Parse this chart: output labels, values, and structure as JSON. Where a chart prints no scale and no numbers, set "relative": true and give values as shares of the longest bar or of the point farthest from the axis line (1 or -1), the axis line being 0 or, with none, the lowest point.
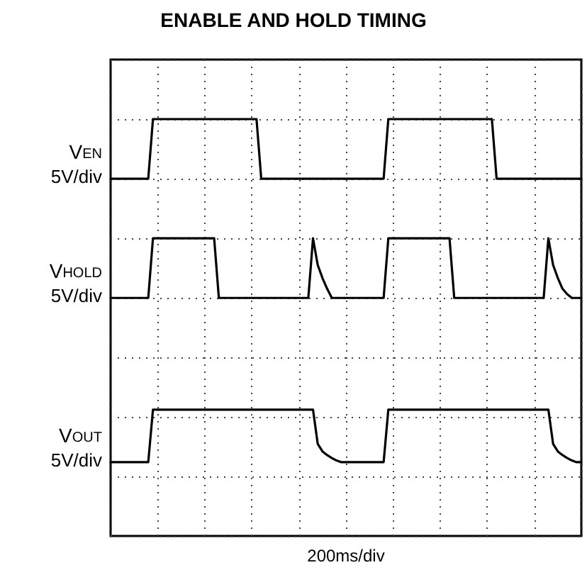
{
  "chart_data": {
    "type": "line",
    "title": "ENABLE AND HOLD TIMING",
    "xlabel": "200ms/div",
    "relative": true,
    "grid": true,
    "legend": false,
    "marker": "none",
    "line_style": "solid",
    "annotations": [
      "5V/div",
      "5V/div",
      "5V/div"
    ],
    "categories": [
      null,
      null,
      null,
      null,
      null,
      null,
      null,
      null,
      null,
      null,
      null,
      null,
      null,
      null,
      null,
      null,
      null,
      null,
      null,
      null,
      null,
      null,
      null,
      null,
      null,
      null,
      null,
      null,
      null,
      null,
      null,
      null,
      null,
      null,
      null,
      null,
      null,
      null,
      null,
      null,
      null,
      null,
      null,
      null,
      null,
      null,
      null,
      null,
      null,
      null,
      null,
      null,
      null,
      null,
      null,
      null,
      null,
      null,
      null,
      null,
      null,
      null,
      null,
      null,
      null,
      null,
      null,
      null,
      null,
      null,
      null,
      null,
      null,
      null,
      null,
      null,
      null,
      null,
      null,
      null,
      null,
      null,
      null,
      null,
      null,
      null,
      null,
      null,
      null,
      null,
      null,
      null,
      null,
      null,
      null,
      null,
      null,
      null,
      null,
      null,
      null
    ],
    "series": [
      {
        "name": "V$_{EN}$",
        "color": "#000000",
        "values": [
          0.857,
          0.857,
          0.857,
          0.857,
          0.857,
          0.857,
          0.857,
          0.857,
          0.857,
          1,
          1,
          1,
          1,
          1,
          1,
          1,
          1,
          1,
          1,
          1,
          1,
          1,
          1,
          1,
          1,
          1,
          1,
          1,
          1,
          1,
          1,
          1,
          0.857,
          0.857,
          0.857,
          0.857,
          0.857,
          0.857,
          0.857,
          0.857,
          0.857,
          0.857,
          0.857,
          0.857,
          0.857,
          0.857,
          0.857,
          0.857,
          0.857,
          0.857,
          0.857,
          0.857,
          0.857,
          0.857,
          0.857,
          0.857,
          0.857,
          0.857,
          0.857,
          1,
          1,
          1,
          1,
          1,
          1,
          1,
          1,
          1,
          1,
          1,
          1,
          1,
          1,
          1,
          1,
          1,
          1,
          1,
          1,
          1,
          1,
          1,
          0.857,
          0.857,
          0.857,
          0.857,
          0.857,
          0.857,
          0.857,
          0.857,
          0.857,
          0.857,
          0.857,
          0.857,
          0.857,
          0.857,
          0.857,
          0.857,
          0.857,
          0.857,
          0.857
        ]
      },
      {
        "name": "V$_{HOLD}$",
        "color": "#000000",
        "values": [
          0.571,
          0.571,
          0.571,
          0.571,
          0.571,
          0.571,
          0.571,
          0.571,
          0.571,
          0.714,
          0.714,
          0.714,
          0.714,
          0.714,
          0.714,
          0.714,
          0.714,
          0.714,
          0.714,
          0.714,
          0.714,
          0.714,
          0.714,
          0.571,
          0.571,
          0.571,
          0.571,
          0.571,
          0.571,
          0.571,
          0.571,
          0.571,
          0.571,
          0.571,
          0.571,
          0.571,
          0.571,
          0.571,
          0.571,
          0.571,
          0.571,
          0.571,
          0.571,
          0.714,
          0.65,
          0.619,
          0.593,
          0.571,
          0.571,
          0.571,
          0.571,
          0.571,
          0.571,
          0.571,
          0.571,
          0.571,
          0.571,
          0.571,
          0.571,
          0.714,
          0.714,
          0.714,
          0.714,
          0.714,
          0.714,
          0.714,
          0.714,
          0.714,
          0.714,
          0.714,
          0.714,
          0.714,
          0.714,
          0.571,
          0.571,
          0.571,
          0.571,
          0.571,
          0.571,
          0.571,
          0.571,
          0.571,
          0.571,
          0.571,
          0.571,
          0.571,
          0.571,
          0.571,
          0.571,
          0.571,
          0.571,
          0.571,
          0.571,
          0.714,
          0.65,
          0.619,
          0.593,
          0.58,
          0.571,
          0.571,
          0.571
        ]
      },
      {
        "name": "V$_{OUT}$",
        "color": "#000000",
        "values": [
          0.177,
          0.177,
          0.177,
          0.177,
          0.177,
          0.177,
          0.177,
          0.177,
          0.177,
          0.303,
          0.303,
          0.303,
          0.303,
          0.303,
          0.303,
          0.303,
          0.303,
          0.303,
          0.303,
          0.303,
          0.303,
          0.303,
          0.303,
          0.303,
          0.303,
          0.303,
          0.303,
          0.303,
          0.303,
          0.303,
          0.303,
          0.303,
          0.303,
          0.303,
          0.303,
          0.303,
          0.303,
          0.303,
          0.303,
          0.303,
          0.303,
          0.303,
          0.303,
          0.303,
          0.221,
          0.203,
          0.194,
          0.187,
          0.181,
          0.177,
          0.177,
          0.177,
          0.177,
          0.177,
          0.177,
          0.177,
          0.177,
          0.177,
          0.177,
          0.303,
          0.303,
          0.303,
          0.303,
          0.303,
          0.303,
          0.303,
          0.303,
          0.303,
          0.303,
          0.303,
          0.303,
          0.303,
          0.303,
          0.303,
          0.303,
          0.303,
          0.303,
          0.303,
          0.303,
          0.303,
          0.303,
          0.303,
          0.303,
          0.303,
          0.303,
          0.303,
          0.303,
          0.303,
          0.303,
          0.303,
          0.303,
          0.303,
          0.303,
          0.303,
          0.221,
          0.203,
          0.194,
          0.187,
          0.181,
          0.177,
          0.177
        ]
      }
    ]
  }
}
